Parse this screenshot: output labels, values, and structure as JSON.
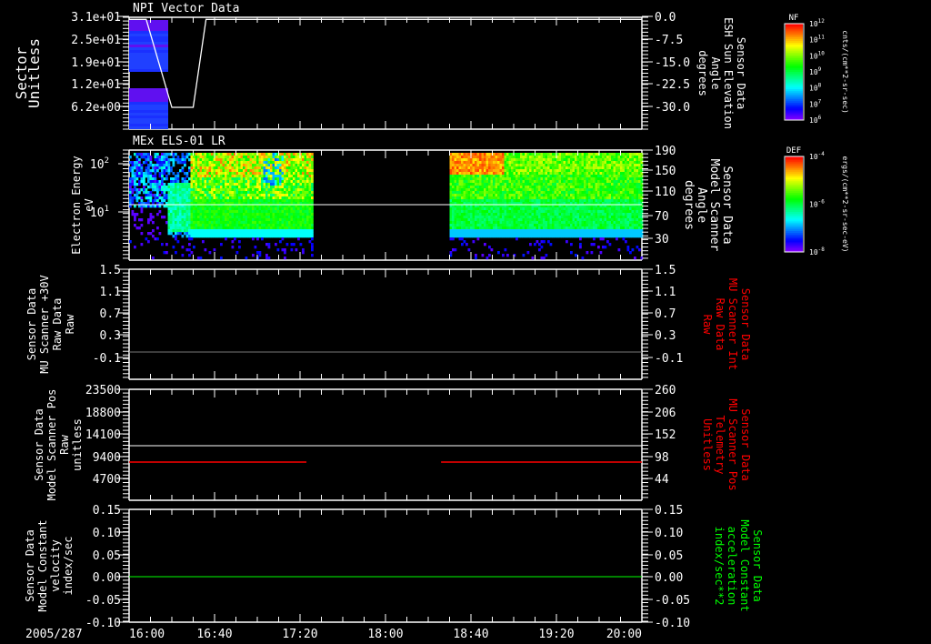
{
  "chart_data": {
    "type": "heatmap",
    "date_label": "2005/287",
    "time_ticks": [
      "16:00",
      "16:40",
      "17:20",
      "18:00",
      "18:40",
      "19:20",
      "20:00"
    ],
    "xlim": [
      "16:00",
      "20:00"
    ],
    "panels": [
      {
        "title": "NPI Vector Data",
        "left_label": [
          "Sector",
          "Unitless"
        ],
        "left_ticks": [
          "3.1e+01",
          "2.5e+01",
          "1.9e+01",
          "1.2e+01",
          "6.2e+00"
        ],
        "right_label": [
          "Sensor Data",
          "ESH Sun Elevation",
          "Angle",
          "degrees"
        ],
        "right_ticks": [
          "0.0",
          "-7.5",
          "-15.0",
          "-22.5",
          "-30.0"
        ],
        "curve": {
          "x_min": [
            0,
            8,
            20,
            30,
            36,
            240
          ],
          "y_deg": [
            -1,
            -1,
            -30,
            -30,
            -1,
            -1
          ]
        },
        "data_coverage_min": [
          0,
          18
        ]
      },
      {
        "title": "MEx ELS-01 LR",
        "left_label": [
          "Electron Energy",
          "eV"
        ],
        "left_ticks": [
          "10",
          "10"
        ],
        "left_tick_exps": [
          "2",
          "1"
        ],
        "right_label": [
          "Sensor Data",
          "Model Scanner",
          "Angle",
          "degrees"
        ],
        "right_ticks": [
          "190",
          "150",
          "110",
          "70",
          "30"
        ],
        "reference_line_deg": 100,
        "data_coverage_min": [
          [
            0,
            83
          ],
          [
            150,
            240
          ]
        ]
      },
      {
        "left_label": [
          "Sensor Data",
          "MU Scanner +30V",
          "Raw Data",
          "Raw"
        ],
        "left_ticks": [
          "1.5",
          "1.1",
          "0.7",
          "0.3",
          "-0.1"
        ],
        "right_label": [
          "Sensor Data",
          "MU Scanner Int",
          "Raw Data",
          "Raw"
        ],
        "right_ticks": [
          "1.5",
          "1.1",
          "0.7",
          "0.3",
          "-0.1"
        ],
        "line_value": 0.0
      },
      {
        "left_label": [
          "Sensor Data",
          "Model Scanner Pos",
          "Raw",
          "unitless"
        ],
        "left_ticks": [
          "23500",
          "18800",
          "14100",
          "9400",
          "4700"
        ],
        "right_label": [
          "Sensor Data",
          "MU Scanner Pos",
          "Telemetry",
          "Unitless"
        ],
        "right_ticks": [
          "260",
          "206",
          "152",
          "98",
          "44"
        ],
        "white_line_value": 11000,
        "red_line_value": 88,
        "red_coverage_min": [
          [
            0,
            83
          ],
          [
            146,
            240
          ]
        ]
      },
      {
        "left_label": [
          "Sensor Data",
          "Model Constant",
          "velocity",
          "index/sec"
        ],
        "left_ticks": [
          "0.15",
          "0.10",
          "0.05",
          "0.00",
          "-0.05",
          "-0.10"
        ],
        "right_label": [
          "Sensor Data",
          "Model Constant",
          "acceleration",
          "index/sec**2"
        ],
        "right_ticks": [
          "0.15",
          "0.10",
          "0.05",
          "0.00",
          "-0.05",
          "-0.10"
        ],
        "line_value": 0.0
      }
    ],
    "colorbars": [
      {
        "title": "NF",
        "ticks": [
          "12",
          "11",
          "10",
          "9",
          "8",
          "7",
          "6"
        ],
        "units": "cnts/(cm**2-sr-sec)"
      },
      {
        "title": "DEF",
        "ticks": [
          "-4",
          "-6",
          "-8"
        ],
        "units": "ergs/(cm**2-sr-sec-eV)"
      }
    ]
  },
  "colors": {
    "background": "#000000",
    "axis": "#ffffff",
    "red_label": "#ff0000",
    "green_label": "#00ff00"
  }
}
